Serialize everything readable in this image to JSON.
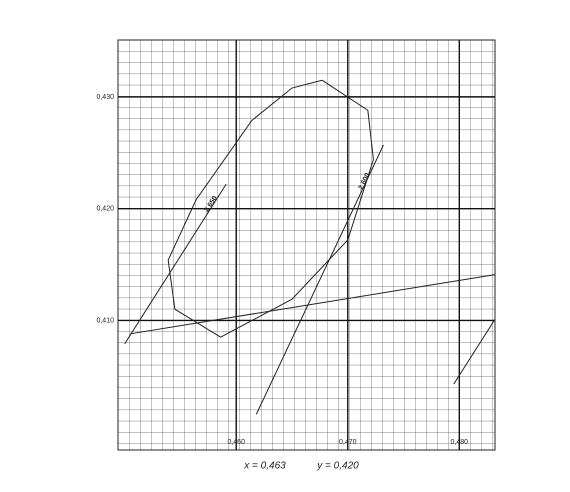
{
  "chart_data": {
    "type": "line",
    "xlim": [
      0.4494,
      0.4832
    ],
    "ylim": [
      0.3984,
      0.4351
    ],
    "xticks": [
      {
        "value": 0.46,
        "label": "0,460"
      },
      {
        "value": 0.47,
        "label": "0,470"
      },
      {
        "value": 0.48,
        "label": "0,480"
      }
    ],
    "yticks": [
      {
        "value": 0.41,
        "label": "0,410"
      },
      {
        "value": 0.42,
        "label": "0,420"
      },
      {
        "value": 0.43,
        "label": "0,430"
      }
    ],
    "grid": true,
    "color": "#222",
    "series": [
      {
        "x": [
          0.4677,
          0.4718,
          0.4723,
          0.47,
          0.465,
          0.4586,
          0.4545,
          0.4539,
          0.4564,
          0.4614,
          0.465,
          0.4677
        ],
        "values": [
          0.4315,
          0.4288,
          0.4244,
          0.4172,
          0.4119,
          0.4085,
          0.411,
          0.4154,
          0.4208,
          0.4279,
          0.4308,
          0.4315
        ]
      },
      {
        "name": "2 650",
        "x": [
          0.45,
          0.4591
        ],
        "values": [
          0.4079,
          0.4222
        ]
      },
      {
        "name": "2 600",
        "x": [
          0.4618,
          0.4732
        ],
        "values": [
          0.4016,
          0.4257
        ]
      },
      {
        "x": [
          0.4505,
          0.4832
        ],
        "values": [
          0.4088,
          0.4141
        ]
      },
      {
        "x": [
          0.4795,
          0.4832
        ],
        "values": [
          0.4043,
          0.4101
        ]
      }
    ],
    "annotations": [
      "x = 0,463",
      "y = 0,420"
    ]
  }
}
